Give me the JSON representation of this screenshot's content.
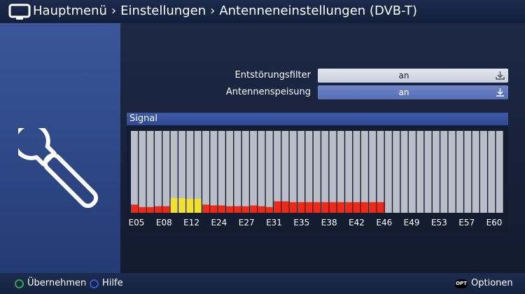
{
  "breadcrumb": [
    "Hauptmenü",
    "Einstellungen",
    "Antenneneinstellungen (DVB-T)"
  ],
  "settings": [
    {
      "label": "Entstörungsfilter",
      "value": "an"
    },
    {
      "label": "Antennenspeisung",
      "value": "an"
    }
  ],
  "signal": {
    "title": "Signal"
  },
  "chart_data": {
    "type": "bar",
    "title": "Signal",
    "ylim": [
      0,
      100
    ],
    "tick_labels": [
      "E05",
      "E08",
      "E12",
      "E24",
      "E27",
      "E31",
      "E35",
      "E38",
      "E42",
      "E46",
      "E49",
      "E53",
      "E57",
      "E60"
    ],
    "bar_count": 47,
    "values": [
      10,
      7,
      7,
      8,
      8,
      18,
      18,
      17,
      17,
      10,
      9,
      9,
      8,
      8,
      8,
      9,
      8,
      7,
      14,
      14,
      13,
      13,
      13,
      13,
      13,
      13,
      13,
      13,
      13,
      13,
      13,
      13,
      0,
      0,
      0,
      0,
      0,
      0,
      0,
      0,
      0,
      0,
      0,
      0,
      0,
      0,
      0
    ],
    "highlighted_bars": [
      5,
      6,
      7,
      8
    ],
    "colors": {
      "bar": "#ee2a17",
      "highlight": "#f0e130",
      "background": "#b9bec8"
    }
  },
  "footer": {
    "accept": "Übernehmen",
    "help": "Hilfe",
    "opt_badge": "OPT",
    "options": "Optionen"
  },
  "colors": {
    "accent_green": "#2aa845",
    "accent_blue": "#3258c8",
    "panel": "#314c8c"
  }
}
